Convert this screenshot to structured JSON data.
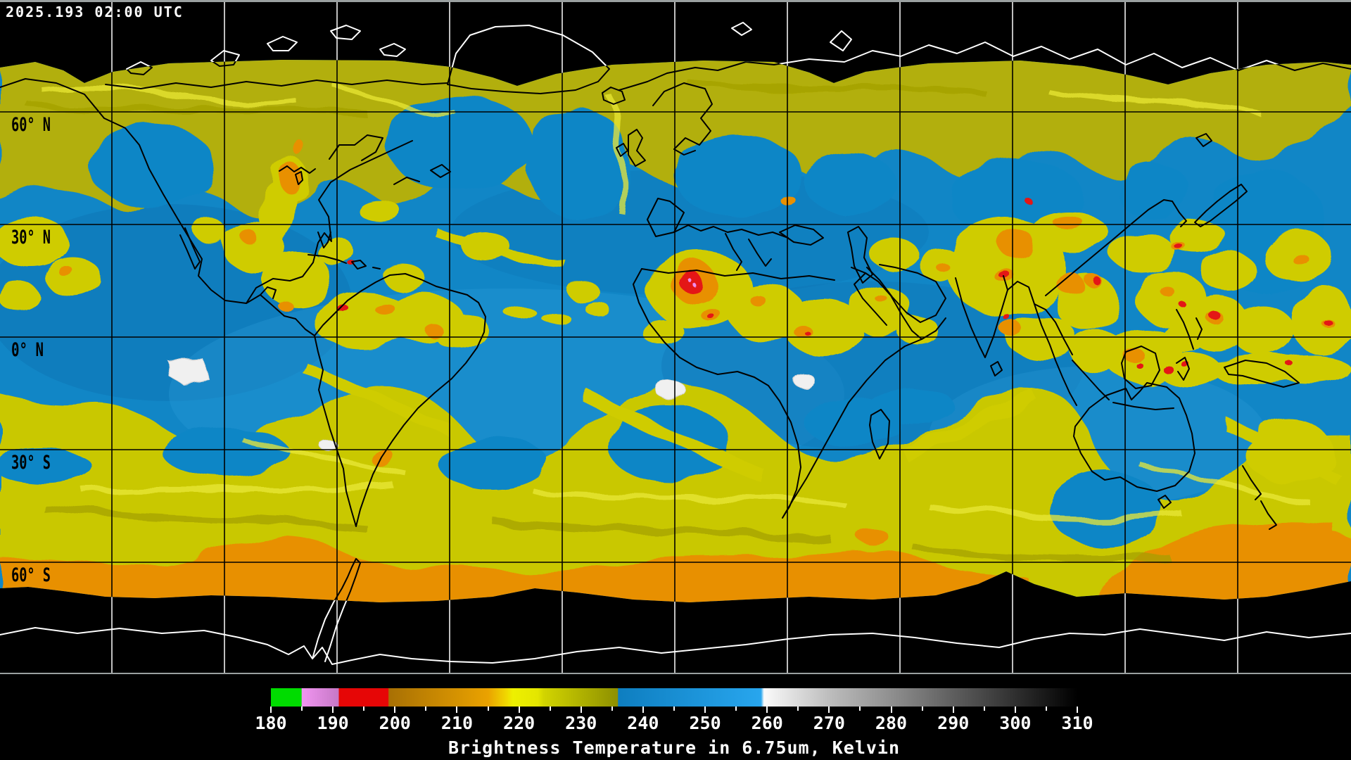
{
  "timestamp": "2025.193 02:00 UTC",
  "map": {
    "latitude_labels": [
      "60° N",
      "30° N",
      "0° N",
      "30° S",
      "60° S"
    ],
    "palette": {
      "space": "#000000",
      "ocean_blue": "#1186c6",
      "cloud_yellow": "#cfcc00",
      "cloud_olive": "#b0ad08",
      "cloud_bright": "#e9e838",
      "cold_orange": "#e89000",
      "cold_red": "#e41212",
      "cold_violet": "#ee8fee",
      "warm_white": "#f0f0f0",
      "coast_over_space": "#ffffff",
      "coast_over_data": "#000000",
      "grid_over_space": "#ffffff",
      "grid_over_data": "#000000",
      "frame_gray": "#9aa0a0"
    }
  },
  "colorbar": {
    "title": "Brightness Temperature in 6.75um, Kelvin",
    "unit": "Kelvin",
    "min": 180,
    "max": 310,
    "tick_step": 10,
    "minor_tick_step": 5,
    "ticks": [
      180,
      190,
      200,
      210,
      220,
      230,
      240,
      250,
      260,
      270,
      280,
      290,
      300,
      310
    ],
    "gradient_stops": [
      [
        180,
        "#00dc00"
      ],
      [
        184.9,
        "#00dc00"
      ],
      [
        185,
        "#f095f0"
      ],
      [
        190.9,
        "#c678c6"
      ],
      [
        191,
        "#e60606"
      ],
      [
        198.9,
        "#e60606"
      ],
      [
        199,
        "#a87004"
      ],
      [
        215,
        "#eaa200"
      ],
      [
        218,
        "#f0d800"
      ],
      [
        219,
        "#eef000"
      ],
      [
        223,
        "#e4e600"
      ],
      [
        224,
        "#d2d400"
      ],
      [
        235.9,
        "#8e9000"
      ],
      [
        236,
        "#0e7ec0"
      ],
      [
        259,
        "#28a6ee"
      ],
      [
        259.5,
        "#fafafa"
      ],
      [
        270,
        "#bdbdbd"
      ],
      [
        280,
        "#8f8f8f"
      ],
      [
        290,
        "#5e5e5e"
      ],
      [
        300,
        "#2f2f2f"
      ],
      [
        310,
        "#000000"
      ]
    ]
  }
}
